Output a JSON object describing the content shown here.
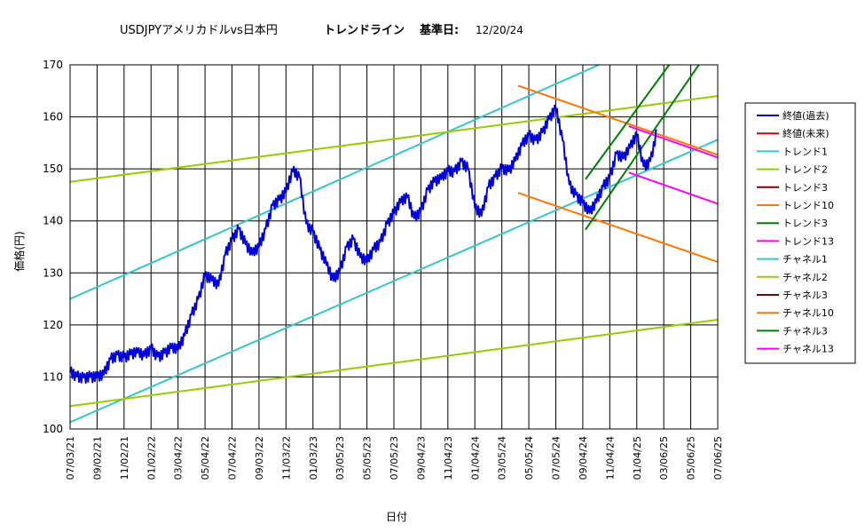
{
  "chart_data": {
    "type": "line",
    "title": "USDJPYアメリカドルvs日本円",
    "subtitle": "トレンドライン",
    "base_date_label": "基準日:",
    "base_date": "12/20/24",
    "xlabel": "日付",
    "ylabel": "価格(円)",
    "ylim": [
      100,
      170
    ],
    "yticks": [
      100,
      110,
      120,
      130,
      140,
      150,
      160,
      170
    ],
    "x_range_index": [
      0,
      24
    ],
    "x_tick_labels": [
      "07/03/21",
      "09/02/21",
      "11/02/21",
      "01/02/22",
      "03/04/22",
      "05/04/22",
      "07/04/22",
      "09/03/22",
      "11/03/22",
      "01/03/23",
      "03/05/23",
      "05/05/23",
      "07/05/23",
      "09/04/23",
      "11/04/23",
      "01/04/24",
      "03/05/24",
      "05/05/24",
      "07/05/24",
      "09/04/24",
      "11/04/24",
      "01/04/25",
      "03/06/25",
      "05/06/25",
      "07/06/25"
    ],
    "grid": true,
    "legend_position": "right",
    "price_series": {
      "name": "終値(過去)",
      "color": "#0000dd",
      "points": [
        [
          0,
          110.9
        ],
        [
          0.25,
          110.2
        ],
        [
          0.5,
          109.9
        ],
        [
          0.75,
          110.0
        ],
        [
          1.0,
          109.8
        ],
        [
          1.25,
          110.4
        ],
        [
          1.5,
          113.4
        ],
        [
          1.75,
          114.3
        ],
        [
          2.0,
          113.8
        ],
        [
          2.25,
          114.3
        ],
        [
          2.5,
          114.6
        ],
        [
          2.75,
          114.0
        ],
        [
          3.0,
          115.6
        ],
        [
          3.25,
          113.9
        ],
        [
          3.5,
          114.6
        ],
        [
          3.75,
          115.5
        ],
        [
          4.0,
          115.2
        ],
        [
          4.25,
          118.0
        ],
        [
          4.5,
          122.0
        ],
        [
          4.75,
          125.0
        ],
        [
          5.0,
          129.5
        ],
        [
          5.25,
          128.5
        ],
        [
          5.5,
          127.5
        ],
        [
          5.75,
          133.5
        ],
        [
          6.0,
          136.5
        ],
        [
          6.25,
          138.5
        ],
        [
          6.5,
          135.5
        ],
        [
          6.75,
          133.5
        ],
        [
          7.0,
          135.0
        ],
        [
          7.25,
          138.5
        ],
        [
          7.5,
          143.0
        ],
        [
          7.75,
          144.0
        ],
        [
          8.0,
          145.5
        ],
        [
          8.25,
          149.5
        ],
        [
          8.5,
          148.5
        ],
        [
          8.75,
          139.5
        ],
        [
          9.0,
          138.0
        ],
        [
          9.25,
          134.5
        ],
        [
          9.5,
          131.5
        ],
        [
          9.75,
          128.5
        ],
        [
          10.0,
          130.5
        ],
        [
          10.25,
          135.0
        ],
        [
          10.5,
          136.5
        ],
        [
          10.75,
          133.0
        ],
        [
          11.0,
          132.0
        ],
        [
          11.25,
          134.5
        ],
        [
          11.5,
          136.0
        ],
        [
          11.75,
          139.5
        ],
        [
          12.0,
          141.5
        ],
        [
          12.25,
          143.5
        ],
        [
          12.5,
          144.5
        ],
        [
          12.75,
          140.5
        ],
        [
          13.0,
          142.0
        ],
        [
          13.25,
          146.0
        ],
        [
          13.5,
          147.5
        ],
        [
          13.75,
          148.0
        ],
        [
          14.0,
          149.5
        ],
        [
          14.25,
          149.5
        ],
        [
          14.5,
          151.5
        ],
        [
          14.75,
          150.0
        ],
        [
          15.0,
          142.5
        ],
        [
          15.25,
          141.0
        ],
        [
          15.5,
          146.5
        ],
        [
          15.75,
          148.5
        ],
        [
          16.0,
          150.3
        ],
        [
          16.25,
          149.5
        ],
        [
          16.5,
          151.5
        ],
        [
          16.75,
          154.5
        ],
        [
          17.0,
          156.5
        ],
        [
          17.25,
          155.5
        ],
        [
          17.5,
          157.0
        ],
        [
          17.75,
          159.5
        ],
        [
          18.0,
          161.5
        ],
        [
          18.25,
          155.5
        ],
        [
          18.5,
          147.0
        ],
        [
          18.75,
          145.0
        ],
        [
          19.0,
          143.5
        ],
        [
          19.25,
          141.5
        ],
        [
          19.5,
          143.5
        ],
        [
          19.75,
          146.5
        ],
        [
          20.0,
          148.5
        ],
        [
          20.25,
          153.0
        ],
        [
          20.5,
          152.0
        ],
        [
          20.75,
          154.0
        ],
        [
          21.0,
          156.5
        ],
        [
          21.25,
          150.5
        ],
        [
          21.5,
          151.5
        ],
        [
          21.75,
          157.4
        ]
      ]
    },
    "series": [
      {
        "name": "トレンド1",
        "color": "#33c8c8",
        "points": [
          [
            0,
            125.0
          ],
          [
            19.6,
            170.0
          ]
        ]
      },
      {
        "name": "トレンド2",
        "color": "#99cc00",
        "points": [
          [
            0,
            147.5
          ],
          [
            24,
            164.0
          ]
        ]
      },
      {
        "name": "チャネル1",
        "color": "#33c8c8",
        "points": [
          [
            0,
            101.3
          ],
          [
            24,
            155.6
          ]
        ]
      },
      {
        "name": "チャネル2",
        "color": "#99cc00",
        "points": [
          [
            0,
            104.4
          ],
          [
            24,
            121.0
          ]
        ]
      },
      {
        "name": "トレンド10",
        "color": "#ff7700",
        "points": [
          [
            16.6,
            166.0
          ],
          [
            24,
            152.7
          ]
        ]
      },
      {
        "name": "チャネル10",
        "color": "#ff7700",
        "points": [
          [
            16.6,
            145.4
          ],
          [
            24,
            132.1
          ]
        ]
      },
      {
        "name": "トレンド3",
        "color": "#008000",
        "points": [
          [
            19.1,
            148.0
          ],
          [
            22.2,
            170.0
          ]
        ]
      },
      {
        "name": "チャネル3",
        "color": "#008000",
        "points": [
          [
            19.1,
            138.3
          ],
          [
            23.3,
            170.0
          ]
        ]
      },
      {
        "name": "トレンド13",
        "color": "#ff00ff",
        "points": [
          [
            20.7,
            158.2
          ],
          [
            24,
            152.2
          ]
        ]
      },
      {
        "name": "チャネル13",
        "color": "#ff00ff",
        "points": [
          [
            20.7,
            149.3
          ],
          [
            24,
            143.3
          ]
        ]
      }
    ],
    "legend": [
      {
        "label": "終値(過去)",
        "color": "#0000dd"
      },
      {
        "label": "終値(未来)",
        "color": "#dd0000"
      },
      {
        "label": "トレンド1",
        "color": "#33c8c8"
      },
      {
        "label": "トレンド2",
        "color": "#99cc00"
      },
      {
        "label": "トレンド3",
        "color": "#800000"
      },
      {
        "label": "トレンド10",
        "color": "#ff7700"
      },
      {
        "label": "トレンド3",
        "color": "#008000"
      },
      {
        "label": "トレンド13",
        "color": "#ff00ff"
      },
      {
        "label": "チャネル1",
        "color": "#33c8c8"
      },
      {
        "label": "チャネル2",
        "color": "#99cc00"
      },
      {
        "label": "チャネル3",
        "color": "#800000"
      },
      {
        "label": "チャネル10",
        "color": "#ff7700"
      },
      {
        "label": "チャネル3",
        "color": "#008000"
      },
      {
        "label": "チャネル13",
        "color": "#ff00ff"
      }
    ]
  }
}
